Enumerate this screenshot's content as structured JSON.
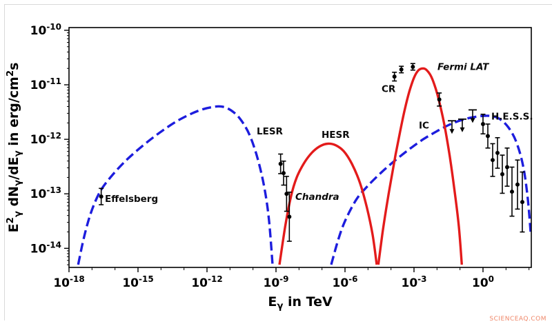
{
  "watermark": "SCIENCEAQ.COM",
  "chart_data": {
    "type": "line",
    "title": "",
    "xlabel": "E_gamma in TeV",
    "ylabel": "E_gamma^2 dN_gamma/dE_gamma in erg/cm^2 s",
    "xlabel_parts": [
      {
        "t": "E"
      },
      {
        "t": "γ",
        "sub": true
      },
      {
        "t": " in TeV"
      }
    ],
    "ylabel_parts": [
      {
        "t": "E"
      },
      {
        "t": "2",
        "sup": true
      },
      {
        "t": "γ",
        "sub": true
      },
      {
        "t": " dN"
      },
      {
        "t": "γ",
        "sub": true
      },
      {
        "t": "/dE"
      },
      {
        "t": "γ",
        "sub": true
      },
      {
        "t": " in erg/cm"
      },
      {
        "t": "2",
        "sup": true
      },
      {
        "t": "s"
      }
    ],
    "x_scale": "log",
    "y_scale": "log",
    "xlim_log10": [
      -18.0,
      2.1
    ],
    "ylim_log10": [
      -14.35,
      -9.95
    ],
    "x_major_ticks_log10": [
      -18,
      -15,
      -12,
      -9,
      -6,
      -3,
      0
    ],
    "y_major_ticks_log10": [
      -14,
      -13,
      -12,
      -11,
      -10
    ],
    "grid": false,
    "legend": "none",
    "colors": {
      "leptonic": "#1d1ddd",
      "hadronic": "#e31b1b",
      "data": "#000000"
    },
    "series": [
      {
        "name": "lesr-synchrotron",
        "label": "LESR",
        "style": "dashed",
        "color_key": "leptonic",
        "points_log10": [
          [
            -17.6,
            -14.3
          ],
          [
            -17.35,
            -13.8
          ],
          [
            -17.05,
            -13.35
          ],
          [
            -16.7,
            -13.0
          ],
          [
            -16.3,
            -12.75
          ],
          [
            -15.6,
            -12.42
          ],
          [
            -14.8,
            -12.12
          ],
          [
            -14.0,
            -11.86
          ],
          [
            -13.2,
            -11.64
          ],
          [
            -12.4,
            -11.48
          ],
          [
            -11.8,
            -11.41
          ],
          [
            -11.35,
            -11.4
          ],
          [
            -10.95,
            -11.47
          ],
          [
            -10.55,
            -11.63
          ],
          [
            -10.15,
            -11.92
          ],
          [
            -9.8,
            -12.35
          ],
          [
            -9.5,
            -12.9
          ],
          [
            -9.3,
            -13.5
          ],
          [
            -9.15,
            -14.3
          ]
        ]
      },
      {
        "name": "ic-inverse-compton",
        "label": "IC",
        "style": "dashed",
        "color_key": "leptonic",
        "points_log10": [
          [
            -6.6,
            -14.3
          ],
          [
            -6.3,
            -13.85
          ],
          [
            -6.0,
            -13.5
          ],
          [
            -5.5,
            -13.1
          ],
          [
            -5.0,
            -12.85
          ],
          [
            -4.4,
            -12.6
          ],
          [
            -3.8,
            -12.38
          ],
          [
            -3.2,
            -12.18
          ],
          [
            -2.6,
            -12.0
          ],
          [
            -2.0,
            -11.85
          ],
          [
            -1.4,
            -11.72
          ],
          [
            -0.8,
            -11.63
          ],
          [
            -0.2,
            -11.58
          ],
          [
            0.3,
            -11.57
          ],
          [
            0.7,
            -11.62
          ],
          [
            1.1,
            -11.78
          ],
          [
            1.45,
            -12.05
          ],
          [
            1.75,
            -12.5
          ],
          [
            1.95,
            -13.1
          ],
          [
            2.08,
            -13.75
          ]
        ]
      },
      {
        "name": "hesr-synchrotron",
        "label": "HESR",
        "style": "solid",
        "color_key": "hadronic",
        "points_log10": [
          [
            -8.85,
            -14.3
          ],
          [
            -8.6,
            -13.6
          ],
          [
            -8.35,
            -13.05
          ],
          [
            -8.1,
            -12.7
          ],
          [
            -7.8,
            -12.45
          ],
          [
            -7.45,
            -12.25
          ],
          [
            -7.1,
            -12.13
          ],
          [
            -6.75,
            -12.08
          ],
          [
            -6.4,
            -12.11
          ],
          [
            -6.05,
            -12.22
          ],
          [
            -5.7,
            -12.45
          ],
          [
            -5.35,
            -12.8
          ],
          [
            -5.05,
            -13.25
          ],
          [
            -4.8,
            -13.75
          ],
          [
            -4.62,
            -14.3
          ]
        ]
      },
      {
        "name": "cr-pion-decay",
        "label": "CR",
        "style": "solid",
        "color_key": "hadronic",
        "points_log10": [
          [
            -4.55,
            -14.3
          ],
          [
            -4.38,
            -13.75
          ],
          [
            -4.2,
            -13.25
          ],
          [
            -4.0,
            -12.75
          ],
          [
            -3.8,
            -12.28
          ],
          [
            -3.6,
            -11.85
          ],
          [
            -3.4,
            -11.45
          ],
          [
            -3.2,
            -11.12
          ],
          [
            -3.0,
            -10.87
          ],
          [
            -2.8,
            -10.73
          ],
          [
            -2.6,
            -10.7
          ],
          [
            -2.45,
            -10.73
          ],
          [
            -2.25,
            -10.85
          ],
          [
            -2.05,
            -11.08
          ],
          [
            -1.85,
            -11.4
          ],
          [
            -1.65,
            -11.8
          ],
          [
            -1.45,
            -12.3
          ],
          [
            -1.25,
            -12.9
          ],
          [
            -1.05,
            -13.6
          ],
          [
            -0.92,
            -14.3
          ]
        ]
      }
    ],
    "datasets": [
      {
        "name": "Effelsberg",
        "marker": "circle",
        "points": [
          {
            "x": -16.6,
            "y": -13.05,
            "yerr": 0.15
          }
        ],
        "upper_limits": []
      },
      {
        "name": "Chandra",
        "marker": "circle",
        "points": [
          {
            "x": -8.8,
            "y": -12.45,
            "yerr": 0.18
          },
          {
            "x": -8.67,
            "y": -12.62,
            "yerr": 0.22
          },
          {
            "x": -8.54,
            "y": -13.0,
            "yerr": 0.32
          },
          {
            "x": -8.42,
            "y": -13.42,
            "yerr": 0.45
          }
        ],
        "upper_limits": []
      },
      {
        "name": "Fermi LAT",
        "marker": "circle",
        "points": [
          {
            "x": -3.85,
            "y": -10.85,
            "yerr": 0.08
          },
          {
            "x": -3.55,
            "y": -10.72,
            "yerr": 0.06
          },
          {
            "x": -3.05,
            "y": -10.67,
            "yerr": 0.06
          },
          {
            "x": -1.9,
            "y": -11.27,
            "yerr": 0.12
          }
        ],
        "upper_limits": [
          {
            "x": -1.35,
            "y": -11.66
          },
          {
            "x": -0.9,
            "y": -11.63
          },
          {
            "x": -0.45,
            "y": -11.46
          }
        ]
      },
      {
        "name": "H.E.S.S.",
        "marker": "circle",
        "points": [
          {
            "x": 0.0,
            "y": -11.72,
            "yerr": 0.18
          },
          {
            "x": 0.21,
            "y": -11.94,
            "yerr": 0.22
          },
          {
            "x": 0.42,
            "y": -12.38,
            "yerr": 0.3
          },
          {
            "x": 0.63,
            "y": -12.25,
            "yerr": 0.28
          },
          {
            "x": 0.84,
            "y": -12.64,
            "yerr": 0.35
          },
          {
            "x": 1.05,
            "y": -12.51,
            "yerr": 0.35
          },
          {
            "x": 1.26,
            "y": -12.96,
            "yerr": 0.45
          },
          {
            "x": 1.5,
            "y": -12.83,
            "yerr": 0.45
          },
          {
            "x": 1.71,
            "y": -13.15,
            "yerr": 0.55
          }
        ],
        "upper_limits": []
      }
    ],
    "annotations": [
      {
        "text": "Effelsberg",
        "x": -16.44,
        "y": -13.15,
        "bold": true,
        "italic": false
      },
      {
        "text": "LESR",
        "x": -9.84,
        "y": -11.91,
        "bold": true,
        "italic": false
      },
      {
        "text": "HESR",
        "x": -7.02,
        "y": -11.97,
        "bold": true,
        "italic": false
      },
      {
        "text": "Chandra",
        "x": -8.16,
        "y": -13.11,
        "bold": true,
        "italic": true
      },
      {
        "text": "CR",
        "x": -4.41,
        "y": -11.13,
        "bold": true,
        "italic": false
      },
      {
        "text": "Fermi LAT",
        "x": -1.98,
        "y": -10.73,
        "bold": true,
        "italic": true
      },
      {
        "text": "IC",
        "x": -2.79,
        "y": -11.8,
        "bold": true,
        "italic": false
      },
      {
        "text": "H.E.S.S.",
        "x": 0.36,
        "y": -11.64,
        "bold": true,
        "italic": false
      }
    ]
  }
}
